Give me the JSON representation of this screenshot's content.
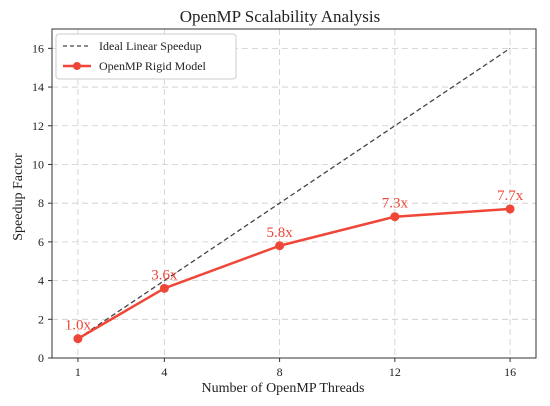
{
  "chart_data": {
    "type": "line",
    "title": "OpenMP Scalability Analysis",
    "xlabel": "Number of OpenMP Threads",
    "ylabel": "Speedup Factor",
    "x": [
      1,
      4,
      8,
      12,
      16
    ],
    "xlim": [
      0.1,
      16.9
    ],
    "ylim": [
      0,
      17
    ],
    "yticks": [
      0,
      2,
      4,
      6,
      8,
      10,
      12,
      14,
      16
    ],
    "grid": true,
    "legend_position": "top-left",
    "series": [
      {
        "name": "Ideal Linear Speedup",
        "values": [
          1,
          4,
          8,
          12,
          16
        ],
        "style": "dashed",
        "color": "#444444"
      },
      {
        "name": "OpenMP Rigid Model",
        "values": [
          1.0,
          3.6,
          5.8,
          7.3,
          7.7
        ],
        "style": "solid-markers",
        "color": "#ef4637",
        "labels": [
          "1.0x",
          "3.6x",
          "5.8x",
          "7.3x",
          "7.7x"
        ]
      }
    ]
  }
}
